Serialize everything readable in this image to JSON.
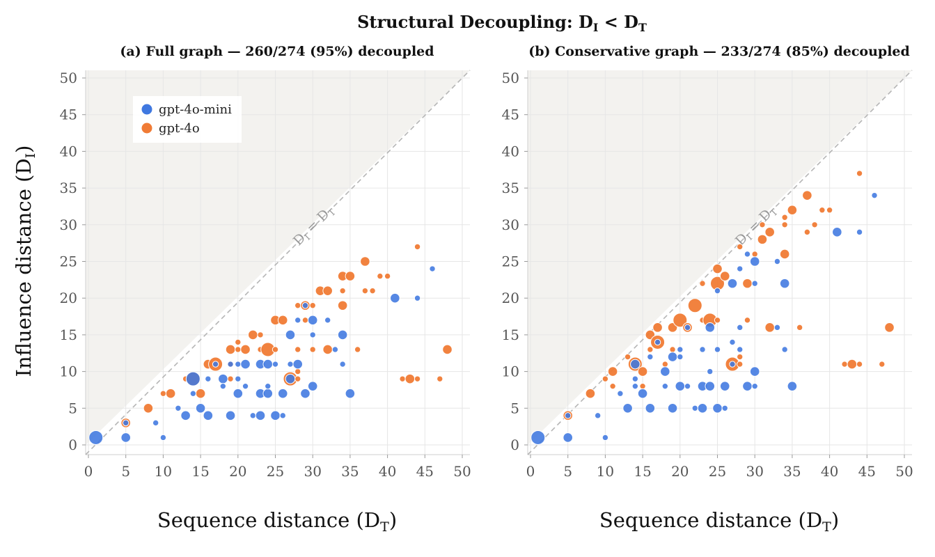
{
  "figure": {
    "suptitle_main": "Structural Decoupling: D",
    "suptitle_sub1": "I",
    "suptitle_mid": " < D",
    "suptitle_sub2": "T",
    "colors": {
      "gpt-4o-mini": "#3f78e0",
      "gpt-4o": "#f07b35",
      "overlap": "#3e55a6",
      "region": "#f3f2ef",
      "diagonal": "#b5b5b5"
    }
  },
  "chart_data": [
    {
      "type": "scatter",
      "title": "(a) Full graph — 260/274 (95%) decoupled",
      "xlabel_main": "Sequence distance (D",
      "xlabel_sub": "T",
      "xlabel_end": ")",
      "ylabel_main": "Influence distance (D",
      "ylabel_sub": "I",
      "ylabel_end": ")",
      "xlim": [
        0,
        50
      ],
      "ylim": [
        0,
        50
      ],
      "xticks": [
        0,
        5,
        10,
        15,
        20,
        25,
        30,
        35,
        40,
        45,
        50
      ],
      "yticks": [
        0,
        5,
        10,
        15,
        20,
        25,
        30,
        35,
        40,
        45,
        50
      ],
      "grid": true,
      "diagonal_label": "D_I = D_T",
      "legend": {
        "placement": "top-left",
        "entries": [
          "gpt-4o-mini",
          "gpt-4o"
        ]
      },
      "series": [
        {
          "name": "gpt-4o-mini",
          "points": [
            [
              1,
              1,
              3
            ],
            [
              5,
              3,
              1
            ],
            [
              5,
              1,
              2
            ],
            [
              9,
              3,
              1
            ],
            [
              10,
              1,
              1
            ],
            [
              12,
              5,
              1
            ],
            [
              13,
              4,
              2
            ],
            [
              14,
              9,
              3
            ],
            [
              14,
              7,
              1
            ],
            [
              15,
              5,
              2
            ],
            [
              16,
              9,
              1
            ],
            [
              16,
              4,
              2
            ],
            [
              17,
              11,
              1
            ],
            [
              18,
              9,
              2
            ],
            [
              18,
              8,
              1
            ],
            [
              19,
              11,
              1
            ],
            [
              19,
              4,
              2
            ],
            [
              20,
              9,
              1
            ],
            [
              20,
              11,
              1
            ],
            [
              20,
              7,
              2
            ],
            [
              21,
              8,
              1
            ],
            [
              21,
              11,
              2
            ],
            [
              22,
              4,
              1
            ],
            [
              23,
              7,
              2
            ],
            [
              23,
              11,
              2
            ],
            [
              23,
              4,
              2
            ],
            [
              24,
              11,
              2
            ],
            [
              24,
              7,
              2
            ],
            [
              24,
              8,
              1
            ],
            [
              25,
              4,
              2
            ],
            [
              25,
              11,
              1
            ],
            [
              26,
              4,
              1
            ],
            [
              26,
              7,
              2
            ],
            [
              27,
              11,
              1
            ],
            [
              27,
              15,
              2
            ],
            [
              27,
              9,
              2
            ],
            [
              28,
              11,
              2
            ],
            [
              28,
              17,
              1
            ],
            [
              29,
              19,
              1
            ],
            [
              29,
              7,
              2
            ],
            [
              30,
              8,
              2
            ],
            [
              30,
              15,
              1
            ],
            [
              30,
              17,
              2
            ],
            [
              32,
              17,
              1
            ],
            [
              33,
              13,
              1
            ],
            [
              34,
              11,
              1
            ],
            [
              34,
              15,
              2
            ],
            [
              35,
              7,
              2
            ],
            [
              41,
              20,
              2
            ],
            [
              44,
              20,
              1
            ],
            [
              46,
              24,
              1
            ]
          ]
        },
        {
          "name": "gpt-4o",
          "points": [
            [
              5,
              3,
              2
            ],
            [
              8,
              5,
              2
            ],
            [
              10,
              7,
              1
            ],
            [
              11,
              7,
              2
            ],
            [
              13,
              9,
              1
            ],
            [
              14,
              9,
              3
            ],
            [
              15,
              7,
              2
            ],
            [
              16,
              11,
              2
            ],
            [
              17,
              11,
              3
            ],
            [
              19,
              9,
              1
            ],
            [
              19,
              11,
              1
            ],
            [
              19,
              13,
              2
            ],
            [
              20,
              14,
              1
            ],
            [
              20,
              13,
              1
            ],
            [
              21,
              13,
              2
            ],
            [
              22,
              15,
              2
            ],
            [
              23,
              13,
              1
            ],
            [
              23,
              15,
              1
            ],
            [
              24,
              13,
              3
            ],
            [
              25,
              17,
              2
            ],
            [
              25,
              13,
              1
            ],
            [
              26,
              17,
              2
            ],
            [
              27,
              9,
              3
            ],
            [
              28,
              9,
              1
            ],
            [
              28,
              10,
              1
            ],
            [
              28,
              13,
              1
            ],
            [
              28,
              19,
              1
            ],
            [
              29,
              17,
              1
            ],
            [
              29,
              19,
              2
            ],
            [
              30,
              13,
              1
            ],
            [
              30,
              19,
              1
            ],
            [
              31,
              21,
              2
            ],
            [
              32,
              21,
              2
            ],
            [
              32,
              13,
              2
            ],
            [
              34,
              19,
              2
            ],
            [
              34,
              21,
              1
            ],
            [
              34,
              23,
              2
            ],
            [
              35,
              23,
              2
            ],
            [
              36,
              13,
              1
            ],
            [
              37,
              25,
              2
            ],
            [
              37,
              21,
              1
            ],
            [
              38,
              21,
              1
            ],
            [
              39,
              23,
              1
            ],
            [
              40,
              23,
              1
            ],
            [
              42,
              9,
              1
            ],
            [
              43,
              9,
              2
            ],
            [
              44,
              9,
              1
            ],
            [
              44,
              27,
              1
            ],
            [
              47,
              9,
              1
            ],
            [
              48,
              13,
              2
            ]
          ]
        }
      ]
    },
    {
      "type": "scatter",
      "title": "(b) Conservative graph — 233/274 (85%) decoupled",
      "xlabel_main": "Sequence distance (D",
      "xlabel_sub": "T",
      "xlabel_end": ")",
      "xlim": [
        0,
        50
      ],
      "ylim": [
        0,
        50
      ],
      "xticks": [
        0,
        5,
        10,
        15,
        20,
        25,
        30,
        35,
        40,
        45,
        50
      ],
      "yticks": [
        0,
        5,
        10,
        15,
        20,
        25,
        30,
        35,
        40,
        45,
        50
      ],
      "grid": true,
      "diagonal_label": "D_I = D_T",
      "series": [
        {
          "name": "gpt-4o-mini",
          "points": [
            [
              1,
              1,
              3
            ],
            [
              5,
              4,
              1
            ],
            [
              5,
              1,
              2
            ],
            [
              9,
              4,
              1
            ],
            [
              10,
              1,
              1
            ],
            [
              12,
              7,
              1
            ],
            [
              13,
              5,
              2
            ],
            [
              14,
              9,
              1
            ],
            [
              14,
              11,
              2
            ],
            [
              14,
              8,
              1
            ],
            [
              15,
              7,
              2
            ],
            [
              16,
              12,
              1
            ],
            [
              16,
              5,
              2
            ],
            [
              17,
              14,
              1
            ],
            [
              18,
              8,
              1
            ],
            [
              18,
              10,
              2
            ],
            [
              19,
              12,
              2
            ],
            [
              19,
              5,
              2
            ],
            [
              20,
              13,
              1
            ],
            [
              20,
              12,
              1
            ],
            [
              20,
              8,
              2
            ],
            [
              21,
              8,
              1
            ],
            [
              21,
              16,
              1
            ],
            [
              22,
              5,
              1
            ],
            [
              23,
              5,
              2
            ],
            [
              23,
              13,
              1
            ],
            [
              23,
              8,
              2
            ],
            [
              24,
              8,
              2
            ],
            [
              24,
              10,
              1
            ],
            [
              24,
              16,
              2
            ],
            [
              25,
              5,
              2
            ],
            [
              25,
              13,
              1
            ],
            [
              25,
              21,
              1
            ],
            [
              26,
              5,
              1
            ],
            [
              26,
              8,
              2
            ],
            [
              27,
              11,
              1
            ],
            [
              27,
              14,
              1
            ],
            [
              27,
              22,
              2
            ],
            [
              28,
              13,
              1
            ],
            [
              28,
              16,
              1
            ],
            [
              28,
              24,
              1
            ],
            [
              29,
              26,
              1
            ],
            [
              29,
              8,
              2
            ],
            [
              30,
              8,
              1
            ],
            [
              30,
              10,
              2
            ],
            [
              30,
              22,
              1
            ],
            [
              30,
              25,
              2
            ],
            [
              33,
              16,
              1
            ],
            [
              33,
              25,
              1
            ],
            [
              34,
              13,
              1
            ],
            [
              34,
              22,
              2
            ],
            [
              35,
              8,
              2
            ],
            [
              41,
              29,
              2
            ],
            [
              44,
              29,
              1
            ],
            [
              46,
              34,
              1
            ]
          ]
        },
        {
          "name": "gpt-4o",
          "points": [
            [
              5,
              4,
              2
            ],
            [
              8,
              7,
              2
            ],
            [
              10,
              9,
              1
            ],
            [
              11,
              10,
              2
            ],
            [
              11,
              8,
              1
            ],
            [
              13,
              12,
              1
            ],
            [
              14,
              11,
              3
            ],
            [
              15,
              8,
              1
            ],
            [
              15,
              10,
              2
            ],
            [
              16,
              13,
              1
            ],
            [
              16,
              15,
              2
            ],
            [
              17,
              14,
              3
            ],
            [
              17,
              16,
              2
            ],
            [
              18,
              11,
              1
            ],
            [
              19,
              13,
              1
            ],
            [
              19,
              16,
              2
            ],
            [
              20,
              17,
              3
            ],
            [
              21,
              16,
              2
            ],
            [
              22,
              19,
              3
            ],
            [
              23,
              17,
              1
            ],
            [
              23,
              22,
              1
            ],
            [
              24,
              17,
              3
            ],
            [
              25,
              17,
              1
            ],
            [
              25,
              22,
              3
            ],
            [
              25,
              24,
              2
            ],
            [
              26,
              23,
              2
            ],
            [
              27,
              11,
              3
            ],
            [
              28,
              11,
              1
            ],
            [
              28,
              12,
              1
            ],
            [
              28,
              27,
              1
            ],
            [
              29,
              17,
              1
            ],
            [
              29,
              22,
              2
            ],
            [
              30,
              26,
              1
            ],
            [
              31,
              28,
              2
            ],
            [
              31,
              30,
              1
            ],
            [
              32,
              16,
              2
            ],
            [
              32,
              29,
              2
            ],
            [
              34,
              26,
              2
            ],
            [
              34,
              30,
              1
            ],
            [
              34,
              31,
              1
            ],
            [
              35,
              32,
              2
            ],
            [
              36,
              16,
              1
            ],
            [
              37,
              29,
              1
            ],
            [
              37,
              34,
              2
            ],
            [
              38,
              30,
              1
            ],
            [
              39,
              32,
              1
            ],
            [
              40,
              32,
              1
            ],
            [
              42,
              11,
              1
            ],
            [
              43,
              11,
              2
            ],
            [
              44,
              11,
              1
            ],
            [
              44,
              37,
              1
            ],
            [
              47,
              11,
              1
            ],
            [
              48,
              16,
              2
            ]
          ]
        }
      ]
    }
  ]
}
